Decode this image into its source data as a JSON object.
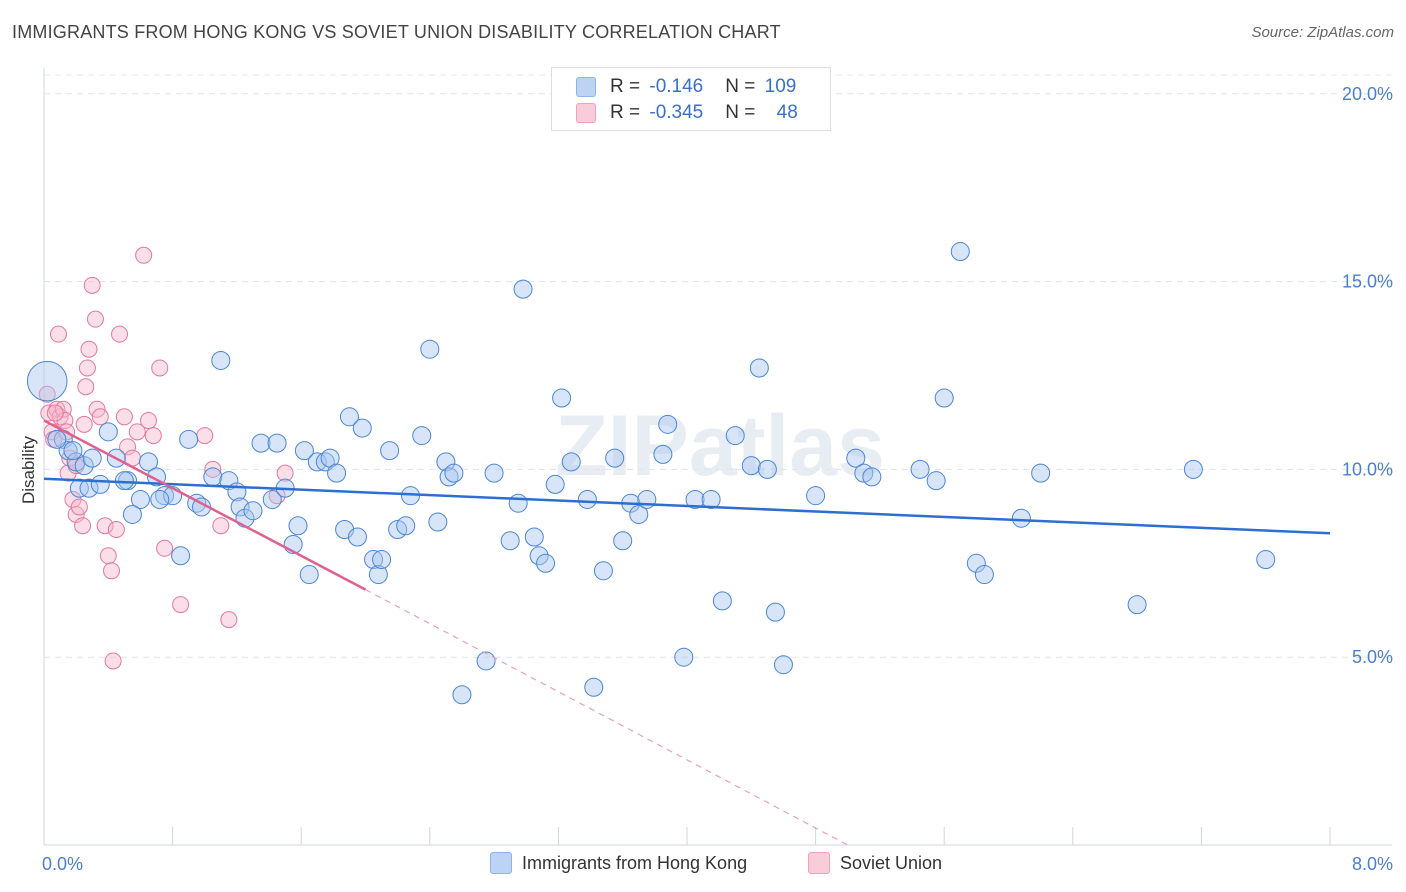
{
  "title": "IMMIGRANTS FROM HONG KONG VS SOVIET UNION DISABILITY CORRELATION CHART",
  "source": "Source: ZipAtlas.com",
  "watermark": "ZIPatlas",
  "legend": {
    "rows": [
      {
        "r_label": "R = ",
        "r_value": "-0.146",
        "n_label": "N = ",
        "n_value": "109",
        "color": "#a9c6ef"
      },
      {
        "r_label": "R = ",
        "r_value": "-0.345",
        "n_label": "N = ",
        "n_value": "48",
        "color": "#f6b8cc"
      }
    ]
  },
  "bottom_legend": [
    {
      "label": "Immigrants from Hong Kong",
      "color": "#a9c6ef"
    },
    {
      "label": "Soviet Union",
      "color": "#f6b8cc"
    }
  ],
  "chart_data": {
    "type": "scatter",
    "title": "IMMIGRANTS FROM HONG KONG VS SOVIET UNION DISABILITY CORRELATION CHART",
    "xlabel": "",
    "ylabel": "Disability",
    "xlim": [
      0,
      8
    ],
    "ylim": [
      0,
      20.5
    ],
    "x_tick_labels": [
      "0.0%",
      "8.0%"
    ],
    "y_ticks": [
      5,
      10,
      15,
      20
    ],
    "y_tick_labels": [
      "5.0%",
      "10.0%",
      "15.0%",
      "20.0%"
    ],
    "grid": true,
    "colors": {
      "hk": "#4a86d8",
      "su": "#e3789e",
      "hk_line": "#2c6fd0",
      "su_line": "#e0608f"
    },
    "series": [
      {
        "name": "Immigrants from Hong Kong",
        "color": "#a9c6ef",
        "trend": {
          "x0": 0,
          "y0": 9.75,
          "x1": 8,
          "y1": 8.3
        },
        "points": [
          [
            0.02,
            12.35,
            2.2
          ],
          [
            0.12,
            10.8,
            1
          ],
          [
            0.15,
            10.5,
            1
          ],
          [
            0.2,
            10.2,
            1
          ],
          [
            0.25,
            10.1,
            1
          ],
          [
            0.3,
            10.3,
            1
          ],
          [
            0.22,
            9.5,
            1
          ],
          [
            0.28,
            9.5,
            1
          ],
          [
            0.4,
            11.0,
            1
          ],
          [
            0.45,
            10.3,
            1
          ],
          [
            0.52,
            9.7,
            1
          ],
          [
            0.6,
            9.2,
            1
          ],
          [
            0.55,
            8.8,
            1
          ],
          [
            0.65,
            10.2,
            1
          ],
          [
            0.7,
            9.8,
            1
          ],
          [
            0.75,
            9.3,
            1
          ],
          [
            0.8,
            9.3,
            1
          ],
          [
            0.85,
            7.7,
            1
          ],
          [
            0.9,
            10.8,
            1
          ],
          [
            0.95,
            9.1,
            1
          ],
          [
            0.98,
            9.0,
            1
          ],
          [
            1.05,
            9.8,
            1
          ],
          [
            1.1,
            12.9,
            1
          ],
          [
            1.15,
            9.7,
            1
          ],
          [
            1.2,
            9.4,
            1
          ],
          [
            1.22,
            9.0,
            1
          ],
          [
            1.25,
            8.7,
            1
          ],
          [
            1.3,
            8.9,
            1
          ],
          [
            1.35,
            10.7,
            1
          ],
          [
            1.42,
            9.2,
            1
          ],
          [
            1.45,
            10.7,
            1
          ],
          [
            1.5,
            9.5,
            1
          ],
          [
            1.55,
            8.0,
            1
          ],
          [
            1.58,
            8.5,
            1
          ],
          [
            1.62,
            10.5,
            1
          ],
          [
            1.65,
            7.2,
            1
          ],
          [
            1.7,
            10.2,
            1
          ],
          [
            1.75,
            10.2,
            1
          ],
          [
            1.78,
            10.3,
            1
          ],
          [
            1.82,
            9.9,
            1
          ],
          [
            1.87,
            8.4,
            1
          ],
          [
            1.9,
            11.4,
            1
          ],
          [
            1.95,
            8.2,
            1
          ],
          [
            1.98,
            11.1,
            1
          ],
          [
            2.05,
            7.6,
            1
          ],
          [
            2.08,
            7.2,
            1
          ],
          [
            2.1,
            7.6,
            1
          ],
          [
            2.15,
            10.5,
            1
          ],
          [
            2.2,
            8.4,
            1
          ],
          [
            2.25,
            8.5,
            1
          ],
          [
            2.28,
            9.3,
            1
          ],
          [
            2.35,
            10.9,
            1
          ],
          [
            2.4,
            13.2,
            1
          ],
          [
            2.45,
            8.6,
            1
          ],
          [
            2.5,
            10.2,
            1
          ],
          [
            2.52,
            9.8,
            1
          ],
          [
            2.55,
            9.9,
            1
          ],
          [
            2.6,
            4.0,
            1
          ],
          [
            2.75,
            4.9,
            1
          ],
          [
            2.8,
            9.9,
            1
          ],
          [
            2.9,
            8.1,
            1
          ],
          [
            2.95,
            9.1,
            1
          ],
          [
            2.98,
            14.8,
            1
          ],
          [
            3.05,
            8.2,
            1
          ],
          [
            3.08,
            7.7,
            1
          ],
          [
            3.12,
            7.5,
            1
          ],
          [
            3.18,
            9.6,
            1
          ],
          [
            3.22,
            11.9,
            1
          ],
          [
            3.28,
            10.2,
            1
          ],
          [
            3.38,
            9.2,
            1
          ],
          [
            3.42,
            4.2,
            1
          ],
          [
            3.48,
            7.3,
            1
          ],
          [
            3.55,
            10.3,
            1
          ],
          [
            3.6,
            8.1,
            1
          ],
          [
            3.65,
            9.1,
            1
          ],
          [
            3.7,
            8.8,
            1
          ],
          [
            3.75,
            9.2,
            1
          ],
          [
            3.85,
            10.4,
            1
          ],
          [
            3.88,
            11.2,
            1
          ],
          [
            3.98,
            5.0,
            1
          ],
          [
            4.05,
            9.2,
            1
          ],
          [
            4.15,
            9.2,
            1
          ],
          [
            4.22,
            6.5,
            1
          ],
          [
            4.3,
            10.9,
            1
          ],
          [
            4.4,
            10.1,
            1
          ],
          [
            4.45,
            12.7,
            1
          ],
          [
            4.5,
            10.0,
            1
          ],
          [
            4.55,
            6.2,
            1
          ],
          [
            4.6,
            4.8,
            1
          ],
          [
            4.8,
            9.3,
            1
          ],
          [
            5.05,
            10.3,
            1
          ],
          [
            5.1,
            9.9,
            1
          ],
          [
            5.15,
            9.8,
            1
          ],
          [
            5.45,
            10.0,
            1
          ],
          [
            5.55,
            9.7,
            1
          ],
          [
            5.6,
            11.9,
            1
          ],
          [
            5.7,
            15.8,
            1
          ],
          [
            5.8,
            7.5,
            1
          ],
          [
            5.85,
            7.2,
            1
          ],
          [
            6.08,
            8.7,
            1
          ],
          [
            6.2,
            9.9,
            1
          ],
          [
            6.8,
            6.4,
            1
          ],
          [
            7.15,
            10.0,
            1
          ],
          [
            7.6,
            7.6,
            1
          ],
          [
            0.08,
            10.8,
            1
          ],
          [
            0.18,
            10.5,
            1
          ],
          [
            0.35,
            9.6,
            1
          ],
          [
            0.5,
            9.7,
            1
          ],
          [
            0.72,
            9.2,
            1
          ]
        ]
      },
      {
        "name": "Soviet Union",
        "color": "#f6b8cc",
        "trend": {
          "x0": 0,
          "y0": 11.3,
          "x1": 2.0,
          "y1": 6.8
        },
        "trend_dashed": {
          "x0": 2.0,
          "y0": 6.8,
          "x1": 5.0,
          "y1": 0
        },
        "points": [
          [
            0.02,
            12.0
          ],
          [
            0.03,
            11.5
          ],
          [
            0.05,
            11.0
          ],
          [
            0.06,
            10.8
          ],
          [
            0.08,
            11.6
          ],
          [
            0.1,
            11.4
          ],
          [
            0.12,
            11.6
          ],
          [
            0.13,
            11.3
          ],
          [
            0.14,
            11.0
          ],
          [
            0.15,
            9.9
          ],
          [
            0.16,
            10.3
          ],
          [
            0.18,
            9.2
          ],
          [
            0.2,
            8.8
          ],
          [
            0.22,
            9.0
          ],
          [
            0.24,
            8.5
          ],
          [
            0.25,
            11.2
          ],
          [
            0.26,
            12.2
          ],
          [
            0.27,
            12.7
          ],
          [
            0.28,
            13.2
          ],
          [
            0.3,
            14.9
          ],
          [
            0.32,
            14.0
          ],
          [
            0.33,
            11.6
          ],
          [
            0.35,
            11.4
          ],
          [
            0.38,
            8.5
          ],
          [
            0.4,
            7.7
          ],
          [
            0.42,
            7.3
          ],
          [
            0.43,
            4.9
          ],
          [
            0.45,
            8.4
          ],
          [
            0.47,
            13.6
          ],
          [
            0.5,
            11.4
          ],
          [
            0.52,
            10.6
          ],
          [
            0.55,
            10.3
          ],
          [
            0.58,
            11.0
          ],
          [
            0.62,
            15.7
          ],
          [
            0.65,
            11.3
          ],
          [
            0.68,
            10.9
          ],
          [
            0.72,
            12.7
          ],
          [
            0.75,
            7.9
          ],
          [
            0.85,
            6.4
          ],
          [
            1.0,
            10.9
          ],
          [
            1.05,
            10.0
          ],
          [
            1.1,
            8.5
          ],
          [
            1.15,
            6.0
          ],
          [
            1.45,
            9.3
          ],
          [
            1.5,
            9.9
          ],
          [
            0.09,
            13.6
          ],
          [
            0.2,
            10.1
          ],
          [
            0.07,
            11.5
          ]
        ]
      }
    ]
  }
}
